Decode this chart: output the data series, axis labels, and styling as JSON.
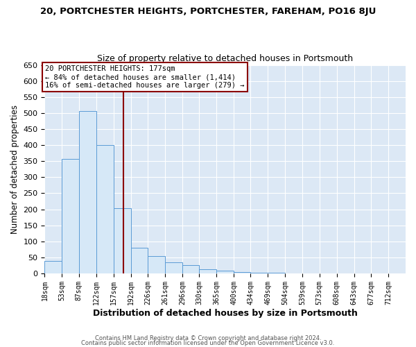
{
  "title": "20, PORTCHESTER HEIGHTS, PORTCHESTER, FAREHAM, PO16 8JU",
  "subtitle": "Size of property relative to detached houses in Portsmouth",
  "xlabel": "Distribution of detached houses by size in Portsmouth",
  "ylabel": "Number of detached properties",
  "bar_color": "#d6e8f7",
  "bar_edge_color": "#5b9bd5",
  "background_color": "#dce8f5",
  "grid_color": "#ffffff",
  "bin_labels": [
    "18sqm",
    "53sqm",
    "87sqm",
    "122sqm",
    "157sqm",
    "192sqm",
    "226sqm",
    "261sqm",
    "296sqm",
    "330sqm",
    "365sqm",
    "400sqm",
    "434sqm",
    "469sqm",
    "504sqm",
    "539sqm",
    "573sqm",
    "608sqm",
    "643sqm",
    "677sqm",
    "712sqm"
  ],
  "bar_values": [
    38,
    357,
    506,
    401,
    204,
    80,
    54,
    35,
    25,
    12,
    8,
    4,
    3,
    2,
    1,
    1,
    0,
    0,
    0,
    1,
    1
  ],
  "ylim": [
    0,
    650
  ],
  "yticks": [
    0,
    50,
    100,
    150,
    200,
    250,
    300,
    350,
    400,
    450,
    500,
    550,
    600,
    650
  ],
  "vline_x": 177,
  "bin_edges": [
    18,
    53,
    87,
    122,
    157,
    192,
    226,
    261,
    296,
    330,
    365,
    400,
    434,
    469,
    504,
    539,
    573,
    608,
    643,
    677,
    712,
    747
  ],
  "annotation_title": "20 PORTCHESTER HEIGHTS: 177sqm",
  "annotation_line1": "← 84% of detached houses are smaller (1,414)",
  "annotation_line2": "16% of semi-detached houses are larger (279) →",
  "footer1": "Contains HM Land Registry data © Crown copyright and database right 2024.",
  "footer2": "Contains public sector information licensed under the Open Government Licence v3.0.",
  "vline_color": "#8b0000"
}
